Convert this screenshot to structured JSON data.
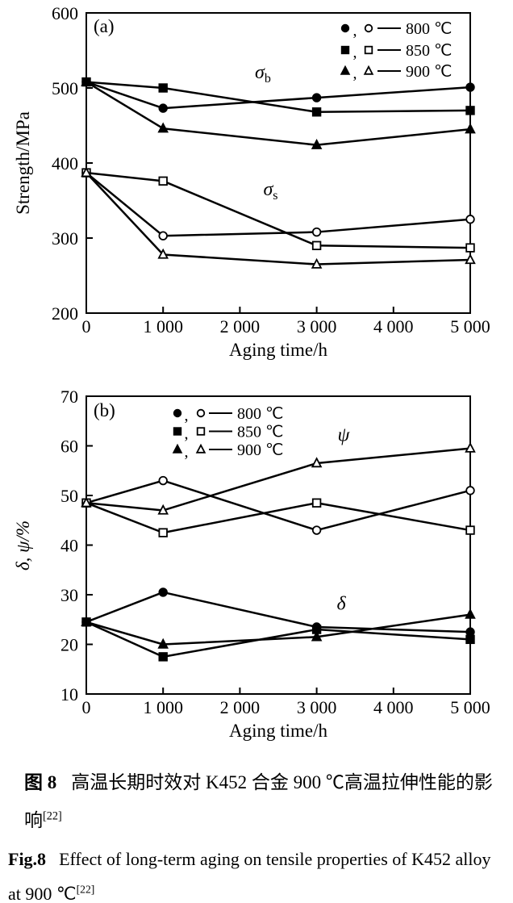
{
  "colors": {
    "ink": "#000000",
    "background": "#ffffff"
  },
  "chart_data": [
    {
      "type": "line",
      "panel_label": "(a)",
      "xlabel": "Aging time/h",
      "ylabel": "Strength/MPa",
      "xlim": [
        0,
        5000
      ],
      "ylim": [
        200,
        600
      ],
      "x_ticks": [
        0,
        1000,
        2000,
        3000,
        4000,
        5000
      ],
      "x_tick_labels": [
        "0",
        "1 000",
        "2 000",
        "3 000",
        "4 000",
        "5 000"
      ],
      "y_ticks": [
        200,
        300,
        400,
        500,
        600
      ],
      "grid": false,
      "legend_position": "top-right",
      "legend": [
        {
          "marker": "circle",
          "label": "800 ℃"
        },
        {
          "marker": "square",
          "label": "850 ℃"
        },
        {
          "marker": "triangle",
          "label": "900 ℃"
        }
      ],
      "x": [
        0,
        1000,
        3000,
        5000
      ],
      "series": [
        {
          "name": "sigma-b 800 C",
          "group": "σb",
          "marker": "circle",
          "filled": true,
          "values": [
            508,
            473,
            487,
            501
          ]
        },
        {
          "name": "sigma-b 850 C",
          "group": "σb",
          "marker": "square",
          "filled": true,
          "values": [
            508,
            500,
            468,
            470
          ]
        },
        {
          "name": "sigma-b 900 C",
          "group": "σb",
          "marker": "triangle",
          "filled": true,
          "values": [
            508,
            446,
            424,
            445
          ]
        },
        {
          "name": "sigma-s 800 C",
          "group": "σs",
          "marker": "circle",
          "filled": false,
          "values": [
            387,
            303,
            308,
            325
          ]
        },
        {
          "name": "sigma-s 850 C",
          "group": "σs",
          "marker": "square",
          "filled": false,
          "values": [
            387,
            376,
            290,
            287
          ]
        },
        {
          "name": "sigma-s 900 C",
          "group": "σs",
          "marker": "triangle",
          "filled": false,
          "values": [
            387,
            278,
            265,
            271
          ]
        }
      ],
      "annotations": [
        {
          "text": "σ",
          "sub": "b",
          "x": 2300,
          "y": 513
        },
        {
          "text": "σ",
          "sub": "s",
          "x": 2400,
          "y": 357
        }
      ]
    },
    {
      "type": "line",
      "panel_label": "(b)",
      "xlabel": "Aging time/h",
      "ylabel": "δ, ψ/%",
      "xlim": [
        0,
        5000
      ],
      "ylim": [
        10,
        70
      ],
      "x_ticks": [
        0,
        1000,
        2000,
        3000,
        4000,
        5000
      ],
      "x_tick_labels": [
        "0",
        "1 000",
        "2 000",
        "3 000",
        "4 000",
        "5 000"
      ],
      "y_ticks": [
        10,
        20,
        30,
        40,
        50,
        60,
        70
      ],
      "grid": false,
      "legend_position": "top-left",
      "legend": [
        {
          "marker": "circle",
          "label": "800 ℃"
        },
        {
          "marker": "square",
          "label": "850 ℃"
        },
        {
          "marker": "triangle",
          "label": "900 ℃"
        }
      ],
      "x": [
        0,
        1000,
        3000,
        5000
      ],
      "series": [
        {
          "name": "psi 800 C",
          "group": "ψ",
          "marker": "circle",
          "filled": false,
          "values": [
            48.5,
            53.0,
            43.0,
            51.0
          ]
        },
        {
          "name": "psi 850 C",
          "group": "ψ",
          "marker": "square",
          "filled": false,
          "values": [
            48.5,
            42.5,
            48.5,
            43.0
          ]
        },
        {
          "name": "psi 900 C",
          "group": "ψ",
          "marker": "triangle",
          "filled": false,
          "values": [
            48.5,
            47.0,
            56.5,
            59.5
          ]
        },
        {
          "name": "delta 800 C",
          "group": "δ",
          "marker": "circle",
          "filled": true,
          "values": [
            24.5,
            30.5,
            23.5,
            22.5
          ]
        },
        {
          "name": "delta 850 C",
          "group": "δ",
          "marker": "square",
          "filled": true,
          "values": [
            24.5,
            17.5,
            23.0,
            21.0
          ]
        },
        {
          "name": "delta 900 C",
          "group": "δ",
          "marker": "triangle",
          "filled": true,
          "values": [
            24.5,
            20.0,
            21.5,
            26.0
          ]
        }
      ],
      "annotations": [
        {
          "text": "ψ",
          "sub": "",
          "x": 3350,
          "y": 61.0
        },
        {
          "text": "δ",
          "sub": "",
          "x": 3320,
          "y": 27.0
        }
      ]
    }
  ],
  "captions": {
    "cn": {
      "label": "图 8",
      "text": "高温长期时效对 K452 合金 900 ℃高温拉伸性能的影响",
      "ref": "[22]"
    },
    "en": {
      "label": "Fig.8",
      "text": "Effect of long-term aging on tensile properties of K452 alloy at 900 ℃",
      "ref": "[22]"
    }
  }
}
